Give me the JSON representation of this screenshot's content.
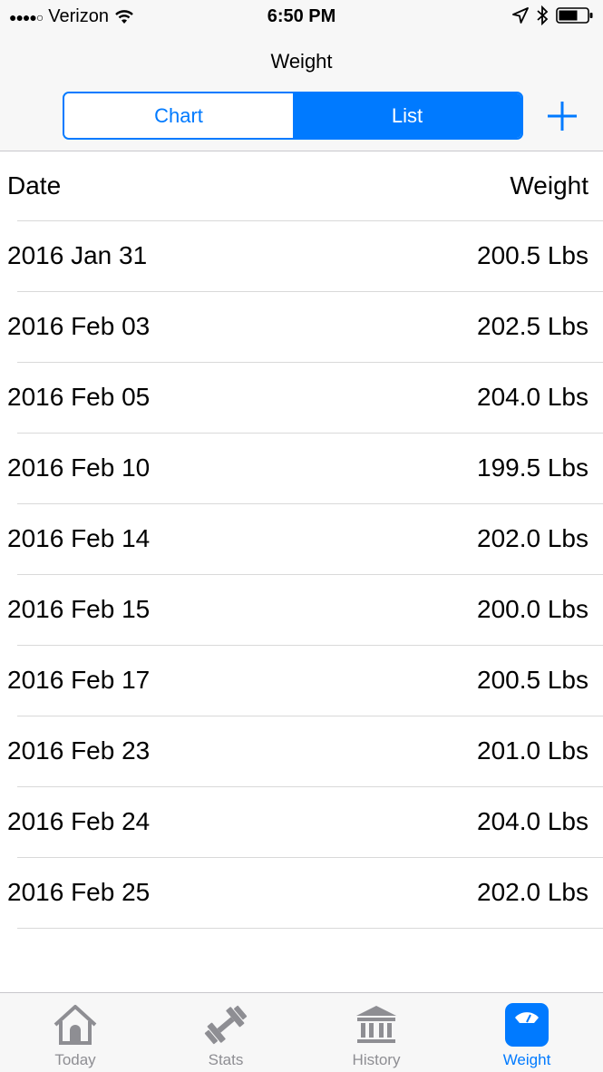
{
  "status_bar": {
    "signal": "●●●●○",
    "carrier": "Verizon",
    "time": "6:50 PM"
  },
  "nav": {
    "title": "Weight",
    "segments": [
      "Chart",
      "List"
    ],
    "selected_segment": "List"
  },
  "table": {
    "headers": {
      "date": "Date",
      "weight": "Weight"
    },
    "rows": [
      {
        "date": "2016 Jan 31",
        "weight": "200.5 Lbs"
      },
      {
        "date": "2016 Feb 03",
        "weight": "202.5 Lbs"
      },
      {
        "date": "2016 Feb 05",
        "weight": "204.0 Lbs"
      },
      {
        "date": "2016 Feb 10",
        "weight": "199.5 Lbs"
      },
      {
        "date": "2016 Feb 14",
        "weight": "202.0 Lbs"
      },
      {
        "date": "2016 Feb 15",
        "weight": "200.0 Lbs"
      },
      {
        "date": "2016 Feb 17",
        "weight": "200.5 Lbs"
      },
      {
        "date": "2016 Feb 23",
        "weight": "201.0 Lbs"
      },
      {
        "date": "2016 Feb 24",
        "weight": "204.0 Lbs"
      },
      {
        "date": "2016 Feb 25",
        "weight": "202.0 Lbs"
      }
    ]
  },
  "tabbar": {
    "tabs": [
      {
        "label": "Today",
        "icon": "house-icon"
      },
      {
        "label": "Stats",
        "icon": "dumbbell-icon"
      },
      {
        "label": "History",
        "icon": "bank-icon"
      },
      {
        "label": "Weight",
        "icon": "scale-icon"
      }
    ],
    "selected": "Weight"
  },
  "colors": {
    "accent": "#007aff",
    "inactive_tab": "#8e8e93",
    "separator": "#d9d9d9"
  }
}
